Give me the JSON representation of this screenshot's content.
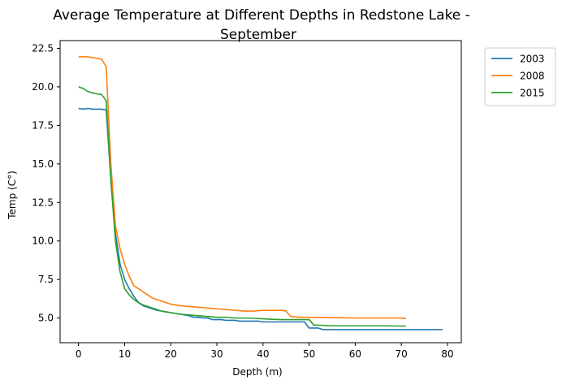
{
  "chart_data": {
    "type": "line",
    "title": "Average Temperature at Different Depths in Redstone Lake -\nSeptember",
    "xlabel": "Depth (m)",
    "ylabel": "Temp (C°)",
    "xlim": [
      -4,
      83
    ],
    "ylim": [
      3.4,
      23.0
    ],
    "xticks": [
      0,
      10,
      20,
      30,
      40,
      50,
      60,
      70,
      80
    ],
    "yticks": [
      5.0,
      7.5,
      10.0,
      12.5,
      15.0,
      17.5,
      20.0,
      22.5
    ],
    "ytick_labels": [
      "5.0",
      "7.5",
      "10.0",
      "12.5",
      "15.0",
      "17.5",
      "20.0",
      "22.5"
    ],
    "legend_position": "outside-top-right",
    "grid": false,
    "series": [
      {
        "name": "2003",
        "color": "#1f77b4",
        "x": [
          0,
          1,
          2,
          3,
          4,
          5,
          6,
          7,
          8,
          9,
          10,
          11,
          12,
          13,
          14,
          15,
          16,
          17,
          18,
          19,
          20,
          21,
          22,
          23,
          24,
          25,
          26,
          27,
          28,
          29,
          30,
          31,
          32,
          33,
          34,
          35,
          36,
          37,
          38,
          39,
          40,
          41,
          42,
          43,
          44,
          45,
          46,
          47,
          48,
          49,
          50,
          51,
          52,
          53,
          54,
          55,
          56,
          57,
          58,
          59,
          60,
          61,
          62,
          63,
          64,
          65,
          66,
          67,
          68,
          69,
          70,
          71,
          72,
          73,
          74,
          75,
          76,
          77,
          78,
          79
        ],
        "y": [
          18.6,
          18.55,
          18.6,
          18.55,
          18.55,
          18.55,
          18.5,
          14.0,
          10.5,
          8.5,
          7.5,
          6.9,
          6.4,
          6.0,
          5.8,
          5.7,
          5.6,
          5.5,
          5.45,
          5.4,
          5.35,
          5.3,
          5.25,
          5.2,
          5.15,
          5.05,
          5.05,
          5.0,
          5.0,
          4.9,
          4.9,
          4.9,
          4.85,
          4.85,
          4.85,
          4.8,
          4.8,
          4.8,
          4.8,
          4.8,
          4.75,
          4.75,
          4.75,
          4.75,
          4.75,
          4.75,
          4.75,
          4.75,
          4.75,
          4.75,
          4.35,
          4.35,
          4.35,
          4.25,
          4.25,
          4.25,
          4.25,
          4.25,
          4.25,
          4.25,
          4.25,
          4.25,
          4.25,
          4.25,
          4.25,
          4.25,
          4.25,
          4.25,
          4.25,
          4.25,
          4.25,
          4.25,
          4.25,
          4.25,
          4.25,
          4.25,
          4.25,
          4.25,
          4.25,
          4.25
        ]
      },
      {
        "name": "2008",
        "color": "#ff7f0e",
        "x": [
          0,
          1,
          2,
          3,
          4,
          5,
          6,
          7,
          8,
          9,
          10,
          11,
          12,
          13,
          14,
          15,
          16,
          17,
          18,
          19,
          20,
          22,
          24,
          26,
          28,
          30,
          32,
          34,
          36,
          38,
          40,
          42,
          44,
          45,
          46,
          48,
          50,
          55,
          60,
          65,
          70,
          71
        ],
        "y": [
          21.95,
          21.95,
          21.95,
          21.9,
          21.85,
          21.8,
          21.3,
          15.0,
          11.0,
          9.5,
          8.5,
          7.7,
          7.1,
          6.9,
          6.7,
          6.5,
          6.3,
          6.2,
          6.1,
          6.0,
          5.9,
          5.8,
          5.75,
          5.7,
          5.65,
          5.6,
          5.55,
          5.5,
          5.45,
          5.45,
          5.5,
          5.5,
          5.5,
          5.45,
          5.1,
          5.05,
          5.05,
          5.03,
          5.0,
          5.0,
          5.0,
          4.97
        ]
      },
      {
        "name": "2015",
        "color": "#2ca02c",
        "x": [
          0,
          1,
          2,
          3,
          4,
          5,
          6,
          7,
          8,
          9,
          10,
          11,
          12,
          13,
          14,
          15,
          16,
          17,
          18,
          19,
          20,
          22,
          24,
          26,
          28,
          30,
          32,
          34,
          36,
          38,
          40,
          42,
          44,
          46,
          48,
          50,
          51,
          55,
          60,
          65,
          70,
          71
        ],
        "y": [
          20.0,
          19.9,
          19.7,
          19.6,
          19.55,
          19.5,
          19.1,
          14.0,
          10.0,
          8.0,
          6.9,
          6.5,
          6.2,
          6.0,
          5.85,
          5.75,
          5.65,
          5.55,
          5.45,
          5.4,
          5.35,
          5.25,
          5.2,
          5.15,
          5.1,
          5.05,
          5.05,
          5.0,
          5.0,
          4.98,
          4.95,
          4.92,
          4.9,
          4.9,
          4.9,
          4.9,
          4.55,
          4.5,
          4.5,
          4.5,
          4.48,
          4.48
        ]
      }
    ]
  }
}
